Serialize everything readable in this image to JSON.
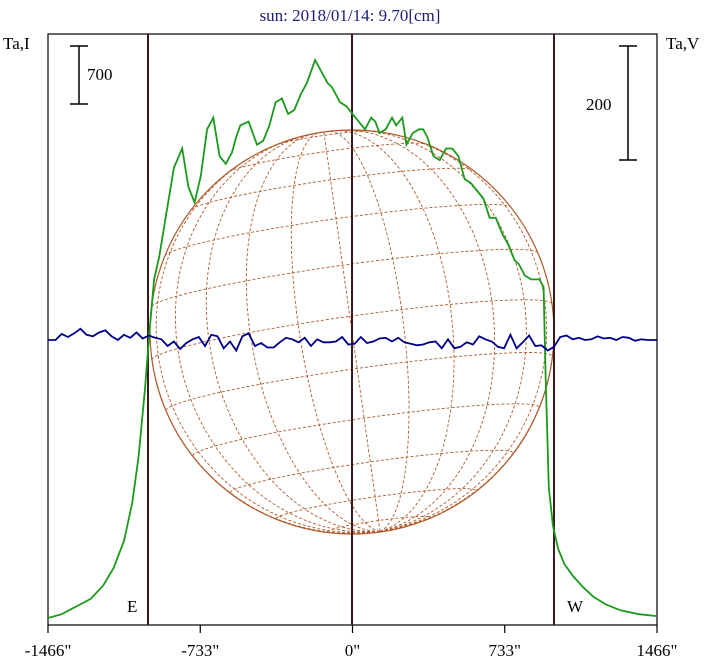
{
  "chart_data": {
    "type": "line",
    "title": "sun: 2018/01/14: 9.70[cm]",
    "left_axis_label": "Ta,I",
    "right_axis_label": "Ta,V",
    "x_ticks": [
      {
        "value": -1466,
        "label": "-1466\""
      },
      {
        "value": -733,
        "label": "-733\""
      },
      {
        "value": 0,
        "label": "0\""
      },
      {
        "value": 733,
        "label": "733\""
      },
      {
        "value": 1466,
        "label": "1466\""
      }
    ],
    "xlim": [
      -1466,
      1466
    ],
    "limb_markers": [
      {
        "value": -930,
        "label": "E"
      },
      {
        "value": 930,
        "label": "W"
      }
    ],
    "scale_bars": [
      {
        "label": "700",
        "side": "left"
      },
      {
        "label": "200",
        "side": "right"
      }
    ],
    "series": [
      {
        "color": "#1a9a1a",
        "x": [
          -1466,
          -1400,
          -1330,
          -1260,
          -1200,
          -1150,
          -1100,
          -1060,
          -1030,
          -1000,
          -975,
          -955,
          -930,
          -900,
          -860,
          -820,
          -790,
          -760,
          -730,
          -700,
          -670,
          -640,
          -610,
          -580,
          -560,
          -540,
          -500,
          -460,
          -430,
          -400,
          -370,
          -340,
          -310,
          -280,
          -250,
          -220,
          -200,
          -180,
          -150,
          -120,
          -100,
          -80,
          -60,
          -30,
          0,
          30,
          60,
          90,
          110,
          130,
          160,
          190,
          210,
          240,
          260,
          290,
          320,
          340,
          360,
          390,
          420,
          450,
          480,
          510,
          540,
          570,
          600,
          630,
          660,
          690,
          720,
          750,
          780,
          800,
          830,
          860,
          880,
          900,
          920,
          930,
          945,
          965,
          990,
          1020,
          1060,
          1110,
          1160,
          1220,
          1290,
          1380,
          1466
        ],
        "y": [
          0,
          10,
          30,
          50,
          85,
          130,
          200,
          300,
          420,
          590,
          760,
          880,
          940,
          1040,
          1170,
          1220,
          1120,
          1080,
          1150,
          1270,
          1300,
          1200,
          1180,
          1210,
          1250,
          1280,
          1290,
          1230,
          1240,
          1280,
          1340,
          1350,
          1310,
          1320,
          1360,
          1390,
          1420,
          1450,
          1420,
          1390,
          1380,
          1360,
          1340,
          1330,
          1310,
          1290,
          1270,
          1300,
          1290,
          1260,
          1270,
          1300,
          1280,
          1300,
          1230,
          1260,
          1270,
          1270,
          1250,
          1200,
          1190,
          1220,
          1220,
          1200,
          1140,
          1130,
          1110,
          1090,
          1040,
          1040,
          1000,
          970,
          930,
          920,
          890,
          880,
          880,
          880,
          860,
          620,
          340,
          240,
          180,
          140,
          110,
          80,
          55,
          35,
          20,
          10,
          5
        ]
      },
      {
        "color": "#00008b",
        "x": [
          -1466,
          -1430,
          -1400,
          -1370,
          -1340,
          -1310,
          -1280,
          -1250,
          -1220,
          -1190,
          -1160,
          -1130,
          -1100,
          -1070,
          -1040,
          -1010,
          -980,
          -950,
          -920,
          -890,
          -860,
          -830,
          -800,
          -770,
          -740,
          -710,
          -680,
          -650,
          -620,
          -590,
          -560,
          -530,
          -500,
          -470,
          -440,
          -410,
          -380,
          -350,
          -320,
          -290,
          -260,
          -230,
          -200,
          -170,
          -140,
          -110,
          -80,
          -50,
          -20,
          10,
          40,
          70,
          100,
          130,
          160,
          190,
          220,
          250,
          280,
          310,
          340,
          370,
          400,
          430,
          460,
          490,
          520,
          550,
          580,
          610,
          640,
          670,
          700,
          730,
          760,
          790,
          820,
          850,
          880,
          910,
          940,
          970,
          1000,
          1030,
          1060,
          1090,
          1120,
          1150,
          1180,
          1210,
          1240,
          1270,
          1300,
          1330,
          1360,
          1390,
          1420,
          1466
        ],
        "y": [
          0,
          0,
          8,
          4,
          9,
          15,
          7,
          5,
          10,
          13,
          5,
          0,
          7,
          3,
          10,
          2,
          6,
          3,
          1,
          -8,
          -2,
          -12,
          -4,
          1,
          4,
          -8,
          7,
          5,
          -11,
          -2,
          -14,
          5,
          9,
          -8,
          -4,
          -10,
          -10,
          -3,
          3,
          1,
          -3,
          3,
          -8,
          1,
          -3,
          -3,
          -2,
          4,
          -6,
          -5,
          4,
          -4,
          -2,
          2,
          3,
          -2,
          3,
          -3,
          -5,
          -7,
          -6,
          -3,
          -2,
          -11,
          1,
          -11,
          -9,
          -3,
          -6,
          5,
          1,
          -2,
          -9,
          -11,
          7,
          -11,
          -3,
          6,
          -8,
          -7,
          -14,
          -9,
          4,
          6,
          1,
          3,
          0,
          1,
          5,
          2,
          3,
          0,
          4,
          3,
          -1,
          1,
          0,
          0
        ]
      }
    ],
    "annotations": [
      "E",
      "W"
    ]
  },
  "ui": {
    "title": "sun: 2018/01/14: 9.70[cm]",
    "left_label": "Ta,I",
    "right_label": "Ta,V",
    "scale_left": "700",
    "scale_right": "200",
    "marker_e": "E",
    "marker_w": "W",
    "colors": {
      "intensity": "#1a9a1a",
      "polarization": "#00008b",
      "disk": "#b05a2a",
      "frame": "#000000",
      "limb_lines": "#3a1a1a",
      "title": "#1c1c7c"
    }
  }
}
